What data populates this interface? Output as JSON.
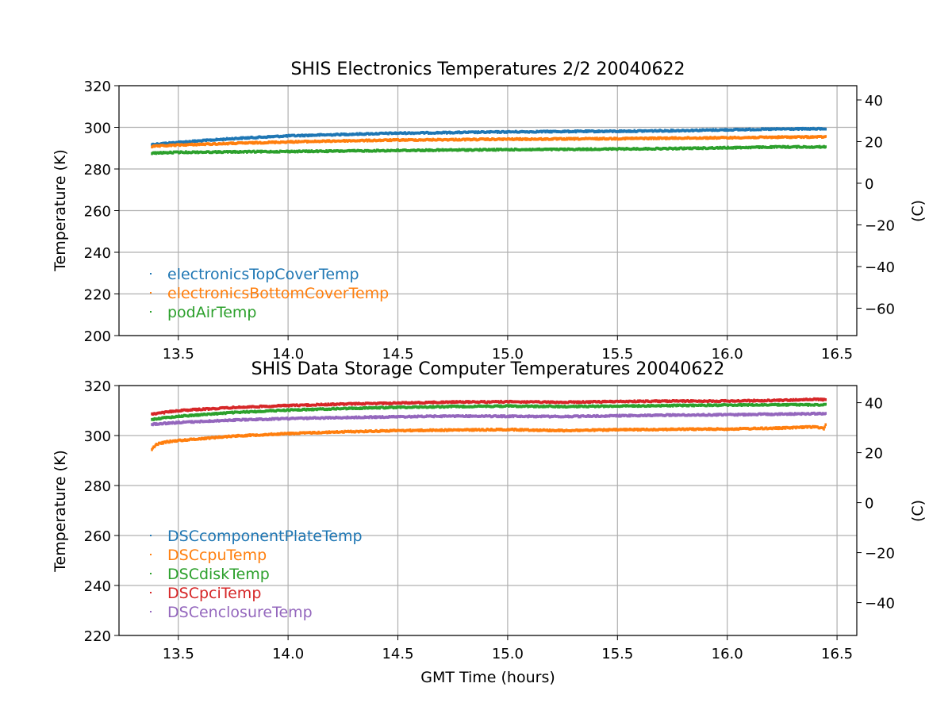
{
  "chart_data": [
    {
      "type": "scatter",
      "title": "SHIS Electronics Temperatures 2/2 20040622",
      "xlabel": "",
      "ylabel": "Temperature (K)",
      "y2label": "(C)",
      "xlim": [
        13.23,
        16.59
      ],
      "ylim": [
        200,
        320
      ],
      "xticks": [
        13.5,
        14.0,
        14.5,
        15.0,
        15.5,
        16.0,
        16.5
      ],
      "xtick_labels": [
        "13.5",
        "14.0",
        "14.5",
        "15.0",
        "15.5",
        "16.0",
        "16.5"
      ],
      "yticks": [
        200,
        220,
        240,
        260,
        280,
        300,
        320
      ],
      "ytick_labels": [
        "200",
        "220",
        "240",
        "260",
        "280",
        "300",
        "320"
      ],
      "y2ticks": [
        -60,
        -40,
        -20,
        0,
        20,
        40
      ],
      "y2tick_labels": [
        "−60",
        "−40",
        "−20",
        "0",
        "20",
        "40"
      ],
      "grid": true,
      "legend_position": "lower-left",
      "series": [
        {
          "name": "electronicsTopCoverTemp",
          "color": "#1f77b4",
          "x": [
            13.38,
            13.5,
            13.75,
            14.0,
            14.25,
            14.5,
            14.75,
            15.0,
            15.25,
            15.5,
            15.75,
            16.0,
            16.25,
            16.45
          ],
          "y": [
            291.8,
            292.8,
            294.6,
            295.9,
            296.6,
            297.2,
            297.5,
            297.8,
            298.0,
            298.1,
            298.4,
            298.8,
            299.2,
            299.3
          ]
        },
        {
          "name": "electronicsBottomCoverTemp",
          "color": "#ff7f0e",
          "x": [
            13.38,
            13.5,
            13.75,
            14.0,
            14.25,
            14.5,
            14.75,
            15.0,
            15.25,
            15.5,
            15.75,
            16.0,
            16.25,
            16.45
          ],
          "y": [
            290.8,
            291.5,
            292.3,
            293.0,
            293.5,
            293.9,
            294.1,
            294.3,
            294.4,
            294.6,
            294.8,
            295.0,
            295.3,
            295.4
          ]
        },
        {
          "name": "podAirTemp",
          "color": "#2ca02c",
          "x": [
            13.38,
            13.5,
            13.75,
            14.0,
            14.25,
            14.5,
            14.75,
            15.0,
            15.25,
            15.5,
            15.75,
            16.0,
            16.25,
            16.45
          ],
          "y": [
            287.6,
            288.0,
            288.2,
            288.4,
            288.6,
            288.9,
            289.1,
            289.3,
            289.4,
            289.6,
            289.8,
            290.2,
            290.6,
            290.6
          ]
        }
      ]
    },
    {
      "type": "scatter",
      "title": "SHIS Data Storage Computer Temperatures 20040622",
      "xlabel": "GMT Time (hours)",
      "ylabel": "Temperature (K)",
      "y2label": "(C)",
      "xlim": [
        13.23,
        16.59
      ],
      "ylim": [
        220,
        320
      ],
      "xticks": [
        13.5,
        14.0,
        14.5,
        15.0,
        15.5,
        16.0,
        16.5
      ],
      "xtick_labels": [
        "13.5",
        "14.0",
        "14.5",
        "15.0",
        "15.5",
        "16.0",
        "16.5"
      ],
      "yticks": [
        220,
        240,
        260,
        280,
        300,
        320
      ],
      "ytick_labels": [
        "220",
        "240",
        "260",
        "280",
        "300",
        "320"
      ],
      "y2ticks": [
        -40,
        -20,
        0,
        20,
        40
      ],
      "y2tick_labels": [
        "−40",
        "−20",
        "0",
        "20",
        "40"
      ],
      "grid": true,
      "legend_position": "lower-left",
      "series": [
        {
          "name": "DSCcomponentPlateTemp",
          "color": "#1f77b4",
          "x": [],
          "y": []
        },
        {
          "name": "DSCcpuTemp",
          "color": "#ff7f0e",
          "x": [
            13.38,
            13.4,
            13.45,
            13.5,
            13.75,
            14.0,
            14.25,
            14.5,
            14.75,
            15.0,
            15.25,
            15.5,
            15.75,
            16.0,
            16.25,
            16.4,
            16.44,
            16.45
          ],
          "y": [
            294.5,
            296.5,
            297.5,
            298.0,
            299.8,
            300.8,
            301.5,
            302.0,
            302.2,
            302.4,
            302.0,
            302.3,
            302.5,
            302.6,
            303.0,
            303.5,
            302.8,
            304.5
          ]
        },
        {
          "name": "DSCdiskTemp",
          "color": "#2ca02c",
          "x": [
            13.38,
            13.5,
            13.75,
            14.0,
            14.25,
            14.5,
            14.75,
            15.0,
            15.25,
            15.5,
            15.75,
            16.0,
            16.25,
            16.45
          ],
          "y": [
            306.5,
            307.7,
            309.2,
            310.2,
            310.8,
            311.3,
            311.6,
            311.8,
            311.6,
            311.8,
            312.0,
            312.2,
            312.3,
            312.3
          ]
        },
        {
          "name": "DSCpciTemp",
          "color": "#d62728",
          "x": [
            13.38,
            13.5,
            13.75,
            14.0,
            14.25,
            14.5,
            14.75,
            15.0,
            15.25,
            15.5,
            15.75,
            16.0,
            16.25,
            16.4,
            16.45
          ],
          "y": [
            308.5,
            310.0,
            311.2,
            312.0,
            312.6,
            313.0,
            313.4,
            313.5,
            313.3,
            313.6,
            313.8,
            313.8,
            314.1,
            314.5,
            314.3
          ]
        },
        {
          "name": "DSCenclosureTemp",
          "color": "#9467bd",
          "x": [
            13.38,
            13.5,
            13.75,
            14.0,
            14.25,
            14.5,
            14.75,
            15.0,
            15.25,
            15.5,
            15.75,
            16.0,
            16.25,
            16.45
          ],
          "y": [
            304.5,
            305.2,
            306.2,
            306.8,
            307.2,
            307.5,
            307.8,
            307.7,
            307.6,
            307.9,
            308.2,
            308.3,
            308.6,
            308.8
          ]
        }
      ]
    }
  ]
}
